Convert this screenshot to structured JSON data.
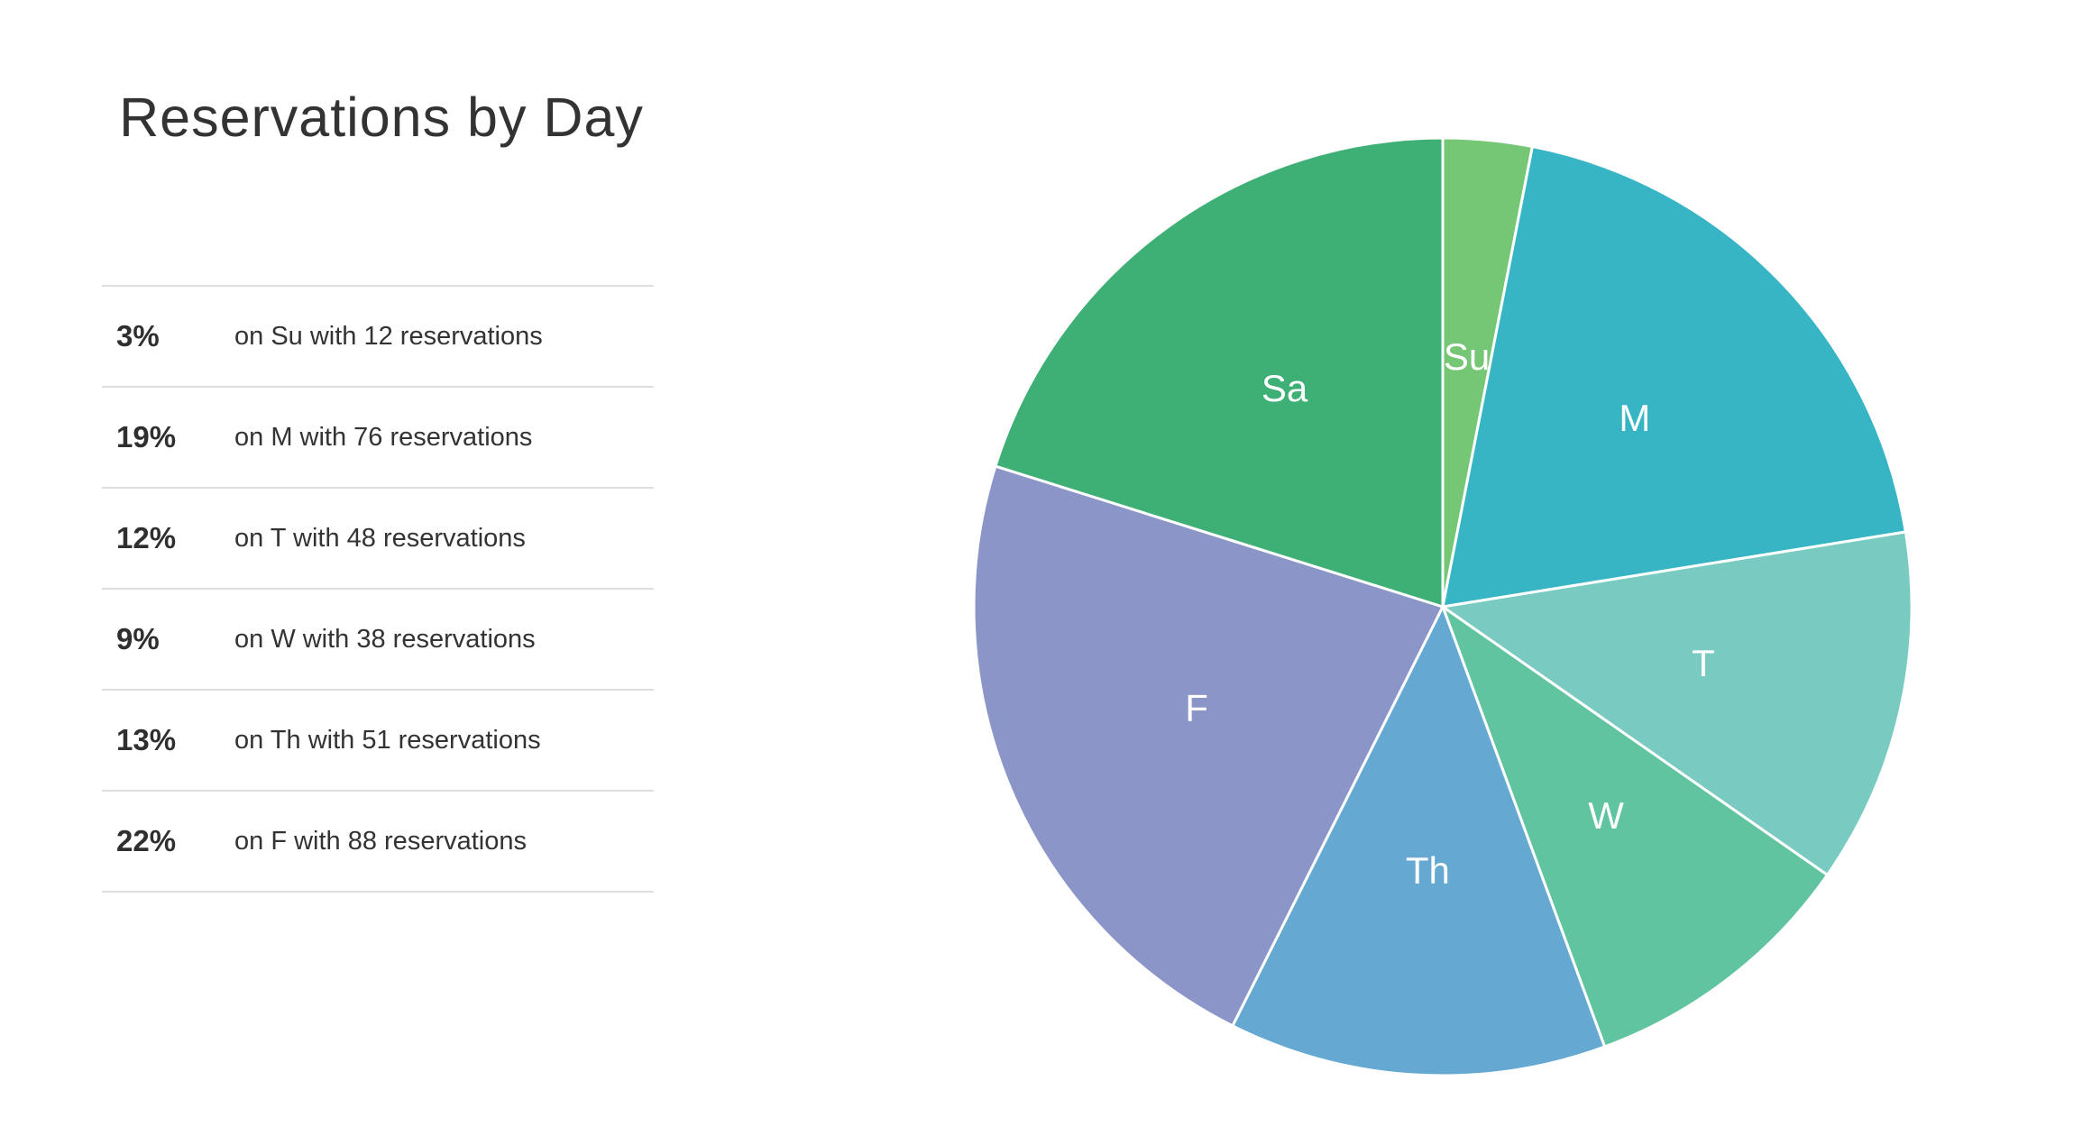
{
  "title": "Reservations by Day",
  "legend": [
    {
      "pct": "3%",
      "desc": "on Su with 12 reservations"
    },
    {
      "pct": "19%",
      "desc": "on M with 76 reservations"
    },
    {
      "pct": "12%",
      "desc": "on T with 48 reservations"
    },
    {
      "pct": "9%",
      "desc": "on W with 38 reservations"
    },
    {
      "pct": "13%",
      "desc": "on Th with 51 reservations"
    },
    {
      "pct": "22%",
      "desc": "on F with 88 reservations"
    }
  ],
  "chart_data": {
    "type": "pie",
    "title": "Reservations by Day",
    "categories": [
      "Su",
      "M",
      "T",
      "W",
      "Th",
      "F",
      "Sa"
    ],
    "values": [
      12,
      76,
      48,
      38,
      51,
      88,
      79
    ],
    "colors": [
      "#75c775",
      "#38b5c5",
      "#79cbc1",
      "#61c4a1",
      "#65a8d2",
      "#8b95c8",
      "#3eb076"
    ],
    "start": "12 o'clock, clockwise"
  }
}
